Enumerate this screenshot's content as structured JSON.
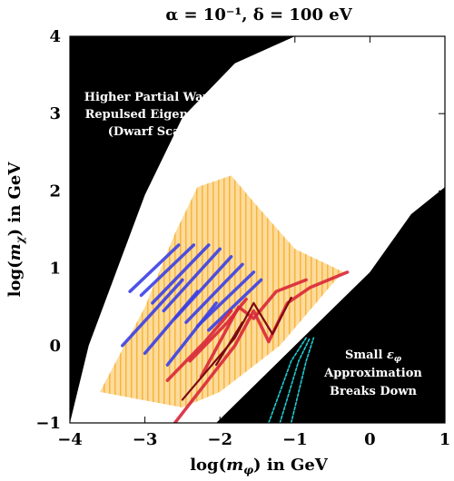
{
  "chart_data": {
    "type": "area",
    "title": "α = 10⁻¹, δ = 100 eV",
    "xlabel": "log(m_φ) in GeV",
    "ylabel": "log(m_χ) in GeV",
    "xlim": [
      -4,
      1
    ],
    "ylim": [
      -1,
      4
    ],
    "xticks": [
      "−4",
      "−3",
      "−2",
      "−1",
      "0",
      "1"
    ],
    "yticks": [
      "−1",
      "0",
      "1",
      "2",
      "3",
      "4"
    ],
    "grid": false,
    "annotations": [
      {
        "lines": [
          "Higher Partial Waves,",
          "Repulsed Eigenstates",
          "(Dwarf Scales)"
        ]
      },
      {
        "lines": [
          "Small ε_φ",
          "Approximation",
          "Breaks Down"
        ]
      }
    ],
    "colors": {
      "excluded": "#000000",
      "orange": "#f6a81a",
      "blue": "#3a3fe6",
      "red": "#d8263a",
      "darkred": "#7a0a12",
      "cyan": "#1ecfd6"
    },
    "regions": {
      "excluded_upper_left": [
        [
          -4,
          -1
        ],
        [
          -3.75,
          0.0
        ],
        [
          -3.0,
          1.95
        ],
        [
          -2.5,
          2.95
        ],
        [
          -1.8,
          3.65
        ],
        [
          -1.0,
          4.0
        ],
        [
          -4,
          4
        ]
      ],
      "excluded_lower_right": [
        [
          -2.05,
          -1
        ],
        [
          -1.0,
          0.0
        ],
        [
          0.0,
          0.95
        ],
        [
          0.55,
          1.7
        ],
        [
          1,
          2.05
        ],
        [
          1,
          -1
        ]
      ],
      "orange_band": [
        [
          -3.6,
          -0.6
        ],
        [
          -3.0,
          0.5
        ],
        [
          -2.6,
          1.45
        ],
        [
          -2.3,
          2.05
        ],
        [
          -1.85,
          2.2
        ],
        [
          -1.5,
          1.8
        ],
        [
          -1.0,
          1.25
        ],
        [
          -0.35,
          0.95
        ],
        [
          -0.5,
          0.8
        ],
        [
          -1.2,
          0.0
        ],
        [
          -2.0,
          -0.6
        ],
        [
          -2.5,
          -0.8
        ]
      ]
    },
    "series": [
      {
        "name": "",
        "color": "blue",
        "segments": [
          [
            [
              -3.2,
              0.7
            ],
            [
              -2.55,
              1.3
            ]
          ],
          [
            [
              -3.05,
              0.65
            ],
            [
              -2.35,
              1.3
            ]
          ],
          [
            [
              -2.9,
              0.55
            ],
            [
              -2.15,
              1.3
            ]
          ],
          [
            [
              -2.75,
              0.45
            ],
            [
              -2.0,
              1.25
            ]
          ],
          [
            [
              -2.6,
              0.35
            ],
            [
              -1.85,
              1.15
            ]
          ],
          [
            [
              -2.45,
              0.3
            ],
            [
              -1.7,
              1.05
            ]
          ],
          [
            [
              -2.3,
              0.25
            ],
            [
              -1.55,
              0.95
            ]
          ],
          [
            [
              -2.15,
              0.2
            ],
            [
              -1.45,
              0.85
            ]
          ],
          [
            [
              -3.3,
              0.0
            ],
            [
              -2.5,
              0.85
            ]
          ],
          [
            [
              -3.0,
              -0.1
            ],
            [
              -2.3,
              0.7
            ]
          ],
          [
            [
              -2.7,
              -0.25
            ],
            [
              -2.05,
              0.55
            ]
          ]
        ]
      },
      {
        "name": "",
        "color": "red",
        "segments": [
          [
            [
              -2.6,
              -1.0
            ],
            [
              -1.8,
              0.0
            ],
            [
              -1.55,
              0.45
            ],
            [
              -1.35,
              0.05
            ],
            [
              -1.1,
              0.55
            ],
            [
              -0.8,
              0.75
            ],
            [
              -0.3,
              0.95
            ]
          ],
          [
            [
              -2.25,
              -0.4
            ],
            [
              -1.75,
              0.5
            ],
            [
              -1.55,
              0.35
            ],
            [
              -1.25,
              0.7
            ],
            [
              -0.85,
              0.85
            ]
          ],
          [
            [
              -2.4,
              -0.2
            ],
            [
              -1.9,
              0.3
            ],
            [
              -1.65,
              0.6
            ]
          ],
          [
            [
              -2.7,
              -0.45
            ],
            [
              -2.2,
              0.05
            ],
            [
              -1.85,
              0.45
            ]
          ]
        ]
      },
      {
        "name": "",
        "color": "darkred",
        "segments": [
          [
            [
              -2.5,
              -0.7
            ],
            [
              -1.8,
              0.1
            ],
            [
              -1.55,
              0.55
            ],
            [
              -1.3,
              0.15
            ],
            [
              -1.05,
              0.62
            ]
          ],
          [
            [
              -2.05,
              -0.25
            ],
            [
              -1.7,
              0.3
            ]
          ]
        ]
      },
      {
        "name": "",
        "color": "cyan",
        "segments": [
          [
            [
              -1.35,
              -1.0
            ],
            [
              -1.05,
              -0.2
            ],
            [
              -0.85,
              0.1
            ]
          ],
          [
            [
              -1.2,
              -1.0
            ],
            [
              -0.95,
              -0.2
            ],
            [
              -0.8,
              0.1
            ]
          ],
          [
            [
              -1.05,
              -1.0
            ],
            [
              -0.85,
              -0.2
            ],
            [
              -0.75,
              0.1
            ]
          ]
        ]
      }
    ]
  }
}
